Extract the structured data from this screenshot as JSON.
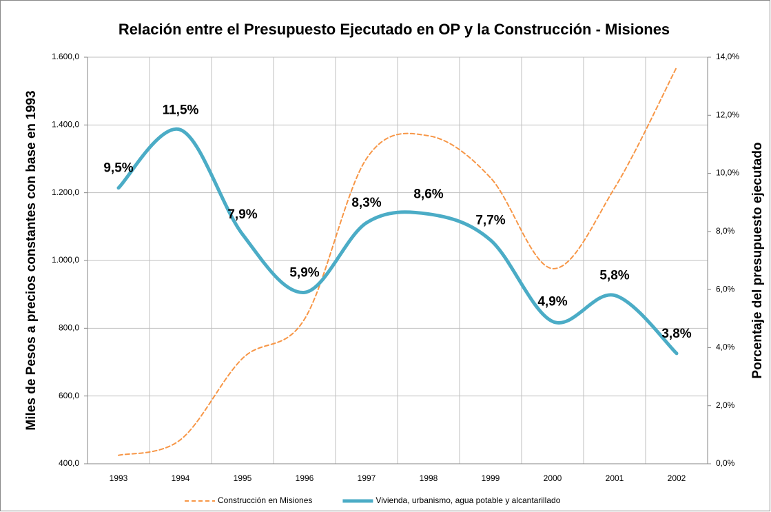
{
  "chart_data": {
    "type": "line",
    "title": "Relación entre el Presupuesto Ejecutado en OP y la Construcción - Misiones",
    "y_label": "Miles de Pesos  a precios  constantes con base en 1993",
    "y2_label": "Porcentaje del presupuesto ejecutado",
    "categories": [
      "1993",
      "1994",
      "1995",
      "1996",
      "1997",
      "1998",
      "1999",
      "2000",
      "2001",
      "2002"
    ],
    "series": [
      {
        "name": "Construcción en Misiones",
        "color": "#f79646",
        "line_style": "dashed",
        "values": [
          425,
          471,
          711,
          827,
          1301,
          1368,
          1244,
          976,
          1214,
          1570
        ]
      },
      {
        "name": "Vivienda, urbanismo, agua potable y alcantarillado",
        "color": "#4bacc6",
        "line_style": "solid",
        "axis": "y2",
        "values": [
          9.5,
          11.5,
          7.9,
          5.9,
          8.3,
          8.6,
          7.7,
          4.9,
          5.8,
          3.8
        ],
        "value_labels": [
          "9,5%",
          "11,5%",
          "7,9%",
          "5,9%",
          "8,3%",
          "8,6%",
          "7,7%",
          "4,9%",
          "5,8%",
          "3,8%"
        ]
      }
    ],
    "ylim": [
      400,
      1600
    ],
    "yticks": [
      {
        "value": 400,
        "label": "400,0"
      },
      {
        "value": 600,
        "label": "600,0"
      },
      {
        "value": 800,
        "label": "800,0"
      },
      {
        "value": 1000,
        "label": "1.000,0"
      },
      {
        "value": 1200,
        "label": "1.200,0"
      },
      {
        "value": 1400,
        "label": "1.400,0"
      },
      {
        "value": 1600,
        "label": "1.600,0"
      }
    ],
    "y2lim": [
      0,
      14
    ],
    "y2ticks": [
      {
        "value": 0,
        "label": "0,0%"
      },
      {
        "value": 2,
        "label": "2,0%"
      },
      {
        "value": 4,
        "label": "4,0%"
      },
      {
        "value": 6,
        "label": "6,0%"
      },
      {
        "value": 8,
        "label": "8,0%"
      },
      {
        "value": 10,
        "label": "10,0%"
      },
      {
        "value": 12,
        "label": "12,0%"
      },
      {
        "value": 14,
        "label": "14,0%"
      }
    ],
    "grid": true,
    "legend": "bottom"
  }
}
